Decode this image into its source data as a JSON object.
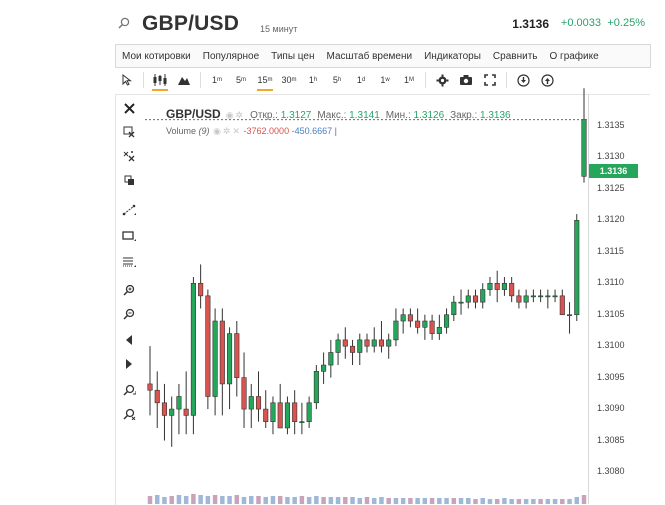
{
  "header": {
    "symbol": "GBP/USD",
    "interval": "15 минут",
    "price": "1.3136",
    "change": "+0.0033",
    "change_pct": "+0.25%",
    "search_icon": "search-icon"
  },
  "menu": {
    "items": [
      "Мои котировки",
      "Популярное",
      "Типы цен",
      "Масштаб времени",
      "Индикаторы",
      "Сравнить",
      "О графике"
    ]
  },
  "toolbar": {
    "timeframes": [
      {
        "n": "1",
        "u": "m",
        "active": false
      },
      {
        "n": "5",
        "u": "m",
        "active": false
      },
      {
        "n": "15",
        "u": "m",
        "active": true
      },
      {
        "n": "30",
        "u": "m",
        "active": false
      },
      {
        "n": "1",
        "u": "h",
        "active": false
      },
      {
        "n": "5",
        "u": "h",
        "active": false
      },
      {
        "n": "1",
        "u": "d",
        "active": false
      },
      {
        "n": "1",
        "u": "w",
        "active": false
      },
      {
        "n": "1",
        "u": "M",
        "active": false
      }
    ],
    "icons": [
      "cursor-icon",
      "candles-icon",
      "mountain-icon",
      "gear-icon",
      "camera-icon",
      "fullscreen-icon",
      "download-icon",
      "upload-icon"
    ]
  },
  "sidebar": {
    "tools": [
      "close-icon",
      "delete-drawing-icon",
      "delete-all-icon",
      "copy-icon",
      "trend-line-icon",
      "rectangle-icon",
      "fibonacci-icon",
      "zoom-in-icon",
      "zoom-out-icon",
      "arrow-left-icon",
      "arrow-right-icon",
      "zoom-fit-icon",
      "zoom-reset-icon"
    ]
  },
  "legend": {
    "symbol": "GBP/USD",
    "open_label": "Откр.:",
    "open": "1.3127",
    "high_label": "Макс.:",
    "high": "1.3141",
    "low_label": "Мин.:",
    "low": "1.3126",
    "close_label": "Закр.:",
    "close": "1.3136",
    "volume_label": "Volume",
    "volume_period": "(9)",
    "volume_v1": "-3762.0000",
    "volume_v2": "-450.6667"
  },
  "colors": {
    "up": "#26a65b",
    "down": "#d9534f",
    "accent": "#f5a623",
    "volume": "#9fb7d9"
  },
  "chart_data": {
    "type": "candlestick",
    "y_ticks": [
      "1.3135",
      "1.3130",
      "1.3125",
      "1.3120",
      "1.3115",
      "1.3110",
      "1.3105",
      "1.3100",
      "1.3095",
      "1.3090",
      "1.3085",
      "1.3080"
    ],
    "ylim": [
      1.3075,
      1.3139
    ],
    "last_price": "1.3136",
    "candles": [
      [
        1.3094,
        1.31,
        1.3089,
        1.3093
      ],
      [
        1.3093,
        1.3096,
        1.3087,
        1.3091
      ],
      [
        1.3091,
        1.3094,
        1.3085,
        1.3089
      ],
      [
        1.3089,
        1.3092,
        1.3084,
        1.309
      ],
      [
        1.309,
        1.3094,
        1.3086,
        1.3092
      ],
      [
        1.309,
        1.3096,
        1.3086,
        1.3089
      ],
      [
        1.3089,
        1.3111,
        1.3086,
        1.311
      ],
      [
        1.311,
        1.3113,
        1.3106,
        1.3108
      ],
      [
        1.3108,
        1.3109,
        1.309,
        1.3092
      ],
      [
        1.3092,
        1.3106,
        1.3089,
        1.3104
      ],
      [
        1.3104,
        1.3106,
        1.3089,
        1.3094
      ],
      [
        1.3094,
        1.3103,
        1.309,
        1.3102
      ],
      [
        1.3102,
        1.3104,
        1.3092,
        1.3095
      ],
      [
        1.3095,
        1.3099,
        1.3087,
        1.309
      ],
      [
        1.309,
        1.3094,
        1.3087,
        1.3092
      ],
      [
        1.3092,
        1.3096,
        1.3088,
        1.309
      ],
      [
        1.309,
        1.3093,
        1.3087,
        1.3088
      ],
      [
        1.3088,
        1.3092,
        1.3086,
        1.3091
      ],
      [
        1.3091,
        1.3094,
        1.3087,
        1.3087
      ],
      [
        1.3087,
        1.3092,
        1.3086,
        1.3091
      ],
      [
        1.3091,
        1.3093,
        1.3086,
        1.3088
      ],
      [
        1.3088,
        1.3091,
        1.3086,
        1.3088
      ],
      [
        1.3088,
        1.3092,
        1.3087,
        1.3091
      ],
      [
        1.3091,
        1.3097,
        1.309,
        1.3096
      ],
      [
        1.3096,
        1.3099,
        1.3094,
        1.3097
      ],
      [
        1.3097,
        1.3101,
        1.3095,
        1.3099
      ],
      [
        1.3099,
        1.3102,
        1.3097,
        1.3101
      ],
      [
        1.3101,
        1.3103,
        1.3098,
        1.31
      ],
      [
        1.31,
        1.3101,
        1.3097,
        1.3099
      ],
      [
        1.3099,
        1.3102,
        1.3097,
        1.3101
      ],
      [
        1.3101,
        1.3102,
        1.3099,
        1.31
      ],
      [
        1.31,
        1.3103,
        1.3099,
        1.3101
      ],
      [
        1.3101,
        1.3104,
        1.3099,
        1.31
      ],
      [
        1.31,
        1.3102,
        1.3098,
        1.3101
      ],
      [
        1.3101,
        1.3106,
        1.31,
        1.3104
      ],
      [
        1.3104,
        1.3106,
        1.3102,
        1.3105
      ],
      [
        1.3105,
        1.3106,
        1.3103,
        1.3104
      ],
      [
        1.3104,
        1.3106,
        1.3102,
        1.3103
      ],
      [
        1.3103,
        1.3105,
        1.3101,
        1.3104
      ],
      [
        1.3104,
        1.3105,
        1.3101,
        1.3102
      ],
      [
        1.3102,
        1.3105,
        1.3101,
        1.3103
      ],
      [
        1.3103,
        1.3106,
        1.3102,
        1.3105
      ],
      [
        1.3105,
        1.3108,
        1.3104,
        1.3107
      ],
      [
        1.3107,
        1.3109,
        1.3105,
        1.3107
      ],
      [
        1.3107,
        1.3109,
        1.3106,
        1.3108
      ],
      [
        1.3108,
        1.3109,
        1.3106,
        1.3107
      ],
      [
        1.3107,
        1.311,
        1.3106,
        1.3109
      ],
      [
        1.3109,
        1.3111,
        1.3108,
        1.311
      ],
      [
        1.311,
        1.3112,
        1.3107,
        1.3109
      ],
      [
        1.3109,
        1.3111,
        1.3108,
        1.311
      ],
      [
        1.311,
        1.3111,
        1.3107,
        1.3108
      ],
      [
        1.3108,
        1.3109,
        1.3106,
        1.3107
      ],
      [
        1.3107,
        1.3109,
        1.3106,
        1.3108
      ],
      [
        1.3108,
        1.3109,
        1.3107,
        1.3108
      ],
      [
        1.3108,
        1.3109,
        1.3107,
        1.3108
      ],
      [
        1.3108,
        1.3109,
        1.3106,
        1.3108
      ],
      [
        1.3108,
        1.3109,
        1.3107,
        1.3108
      ],
      [
        1.3108,
        1.3109,
        1.3105,
        1.3105
      ],
      [
        1.3105,
        1.3107,
        1.3102,
        1.3105
      ],
      [
        1.3105,
        1.3121,
        1.3104,
        1.312
      ],
      [
        1.3127,
        1.3141,
        1.3126,
        1.3136
      ]
    ],
    "volume": [
      8,
      9,
      7,
      8,
      9,
      8,
      10,
      9,
      8,
      9,
      8,
      8,
      9,
      7,
      8,
      8,
      7,
      8,
      8,
      7,
      7,
      8,
      7,
      8,
      7,
      7,
      7,
      7,
      7,
      6,
      7,
      6,
      7,
      6,
      6,
      6,
      6,
      6,
      6,
      6,
      6,
      6,
      6,
      6,
      6,
      5,
      6,
      5,
      5,
      6,
      5,
      5,
      5,
      5,
      5,
      5,
      5,
      5,
      5,
      7,
      9
    ]
  }
}
